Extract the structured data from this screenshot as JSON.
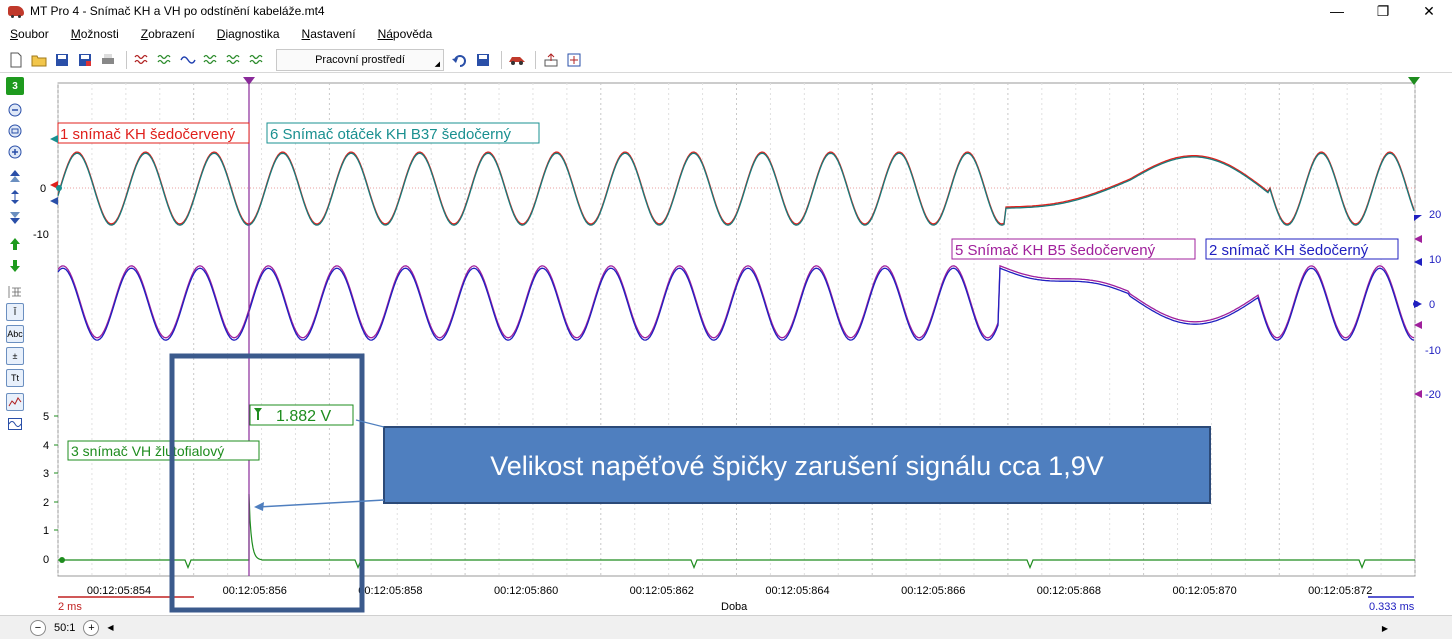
{
  "window": {
    "title": "MT Pro 4 - Snímač KH a VH po odstínění kabeláže.mt4",
    "controls": {
      "minimize": "—",
      "restore": "❐",
      "close": "✕"
    }
  },
  "menu": [
    {
      "underline": "S",
      "rest": "oubor"
    },
    {
      "underline": "M",
      "rest": "ožnosti"
    },
    {
      "underline": "Z",
      "rest": "obrazení"
    },
    {
      "underline": "D",
      "rest": "iagnostika"
    },
    {
      "underline": "N",
      "rest": "astavení"
    },
    {
      "underline": "Ná",
      "rest": "pověda"
    }
  ],
  "toolbar": {
    "workspace_label": "Pracovní prostředí"
  },
  "left_tools": {
    "channel_badge": "3"
  },
  "channels": {
    "ch1": {
      "label": "1 snímač KH šedočervený",
      "color": "#e0201c"
    },
    "ch6": {
      "label": "6 Snímač otáček KH B37 šedočerný",
      "color": "#1a9090"
    },
    "ch5": {
      "label": "5 Snímač KH B5 šedočervený",
      "color": "#a0209c"
    },
    "ch2": {
      "label": "2 snímač KH šedočerný",
      "color": "#2020c0"
    },
    "ch3": {
      "label": "3 snímač VH žlutofialový",
      "color": "#1e8c1e"
    }
  },
  "axes": {
    "upper_left_ticks": [
      "0",
      "-10"
    ],
    "right_ticks": [
      "20",
      "10",
      "0",
      "-10",
      "-20"
    ],
    "lower_left_ticks": [
      "5",
      "4",
      "3",
      "2",
      "1",
      "0"
    ],
    "time_ticks": [
      "00:12:05:854",
      "00:12:05:856",
      "00:12:05:858",
      "00:12:05:860",
      "00:12:05:862",
      "00:12:05:864",
      "00:12:05:866",
      "00:12:05:868",
      "00:12:05:870",
      "00:12:05:872"
    ],
    "time_axis_label": "Doba",
    "scale_left": "2 ms",
    "scale_right": "0.333 ms"
  },
  "cursor": {
    "value_label": "1.882 V"
  },
  "annotation": {
    "text": "Velikost napěťové špičky zarušení signálu cca 1,9V"
  },
  "statusbar": {
    "zoom": "50:1"
  }
}
